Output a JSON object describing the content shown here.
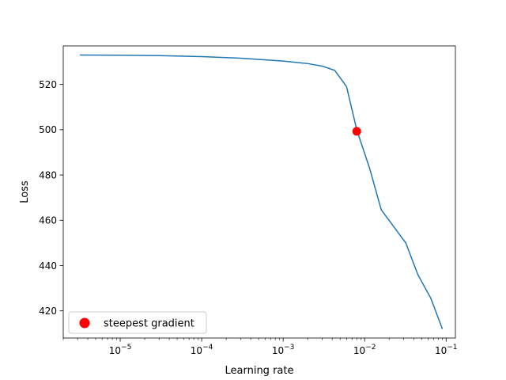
{
  "chart_data": {
    "type": "line",
    "xscale": "log",
    "xlabel": "Learning rate",
    "ylabel": "Loss",
    "xlim": [
      2e-06,
      0.13
    ],
    "ylim": [
      408,
      537
    ],
    "grid": false,
    "x_ticks": [
      {
        "value": 1e-05,
        "base": "10",
        "exp": "−5"
      },
      {
        "value": 0.0001,
        "base": "10",
        "exp": "−4"
      },
      {
        "value": 0.001,
        "base": "10",
        "exp": "−3"
      },
      {
        "value": 0.01,
        "base": "10",
        "exp": "−2"
      },
      {
        "value": 0.1,
        "base": "10",
        "exp": "−1"
      }
    ],
    "y_ticks": [
      420,
      440,
      460,
      480,
      500,
      520
    ],
    "series": [
      {
        "color": "#1f77b4",
        "x": [
          3.2e-06,
          1e-05,
          3e-05,
          0.0001,
          0.0003,
          0.001,
          0.002,
          0.003,
          0.0043,
          0.006,
          0.008,
          0.0115,
          0.016,
          0.032,
          0.045,
          0.065,
          0.09
        ],
        "y": [
          533,
          532.9,
          532.7,
          532.3,
          531.6,
          530.3,
          529.2,
          528.1,
          526.2,
          519,
          500,
          483,
          464.6,
          450,
          436,
          425.5,
          412
        ]
      }
    ],
    "marker": {
      "name": "steepest gradient",
      "x": 0.008,
      "y": 499.3,
      "color": "#ff0000"
    },
    "legend": {
      "position": "lower-left",
      "entries": [
        "steepest gradient"
      ]
    }
  }
}
